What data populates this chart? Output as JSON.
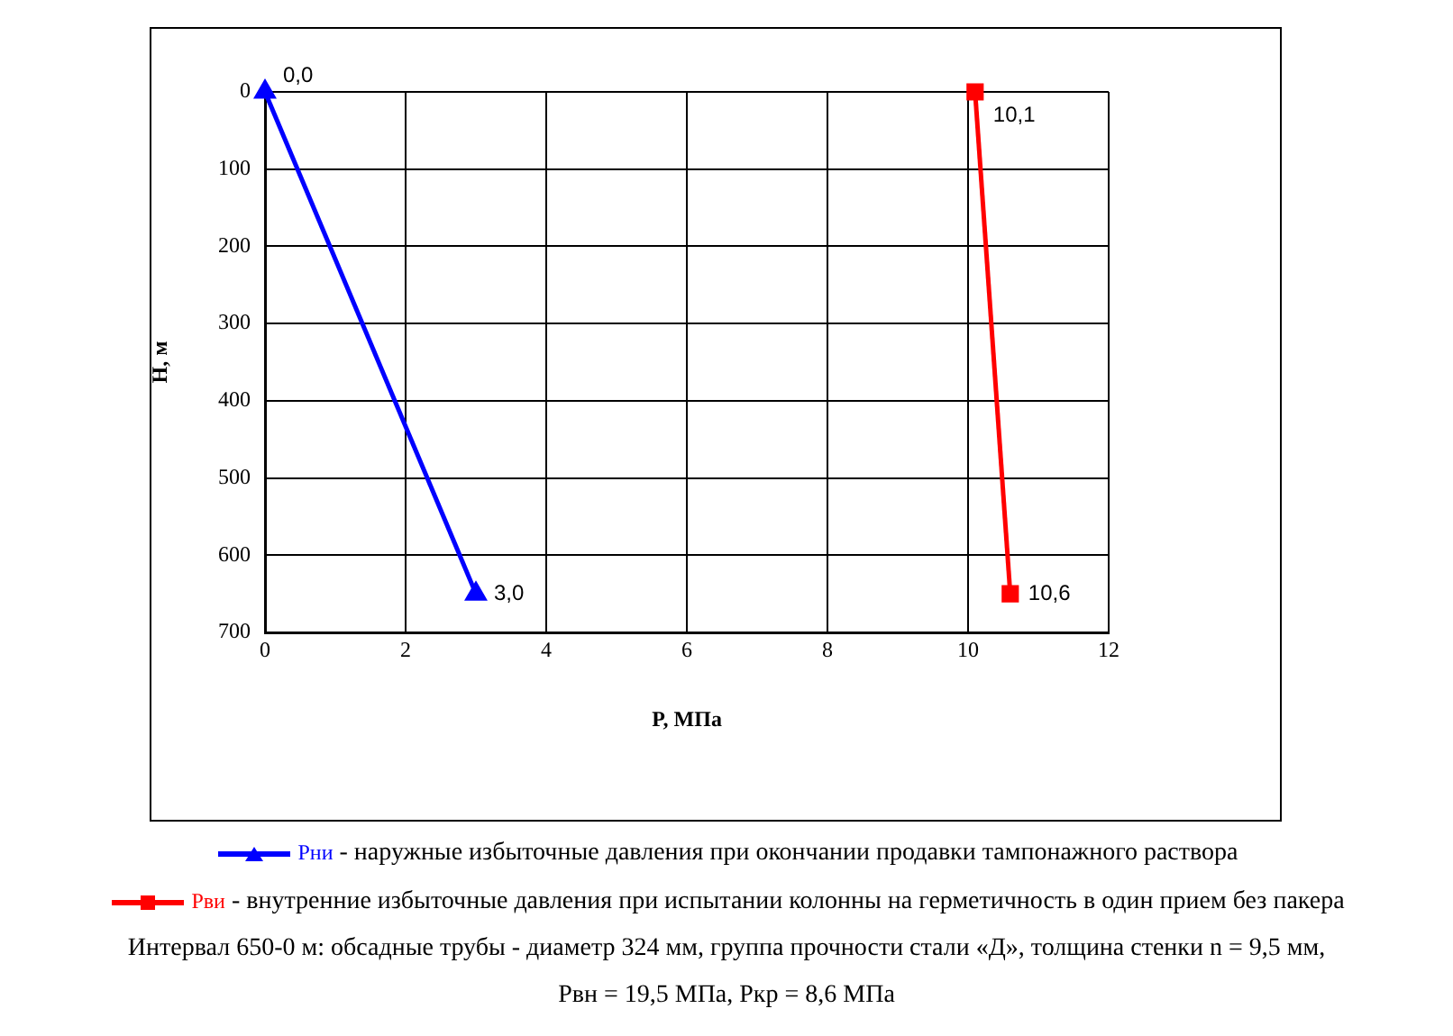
{
  "chart_data": {
    "type": "line",
    "xlabel": "P, МПа",
    "ylabel": "H, м",
    "xlim": [
      0,
      12
    ],
    "xticks": [
      0,
      2,
      4,
      6,
      8,
      10,
      12
    ],
    "ylim": [
      700,
      0
    ],
    "yticks": [
      0,
      100,
      200,
      300,
      400,
      500,
      600,
      700
    ],
    "grid": true,
    "legend": "bottom",
    "line_style": "solid",
    "series": [
      {
        "name": "Рни",
        "color": "#0000ff",
        "marker": "triangle",
        "x": [
          0,
          3
        ],
        "values": [
          0,
          650
        ]
      },
      {
        "name": "Рви",
        "color": "#ff0000",
        "marker": "square",
        "x": [
          10.1,
          10.6
        ],
        "values": [
          0,
          650
        ]
      }
    ],
    "annotations": [
      {
        "text": "0,0",
        "x": 0,
        "y": 0
      },
      {
        "text": "3,0",
        "x": 3,
        "y": 650
      },
      {
        "text": "10,1",
        "x": 10.1,
        "y": 0
      },
      {
        "text": "10,6",
        "x": 10.6,
        "y": 650
      },
      "- наружные избыточные давления при окончании продавки тампонажного раствора",
      "- внутренние избыточные давления при испытании колонны на герметичность в один прием без пакера",
      "Интервал 650-0 м: обсадные трубы - диаметр 324 мм, группа прочности стали «Д», толщина стенки n = 9,5 мм,",
      "Рвн = 19,5 МПа, Ркр = 8,6 МПа"
    ]
  }
}
